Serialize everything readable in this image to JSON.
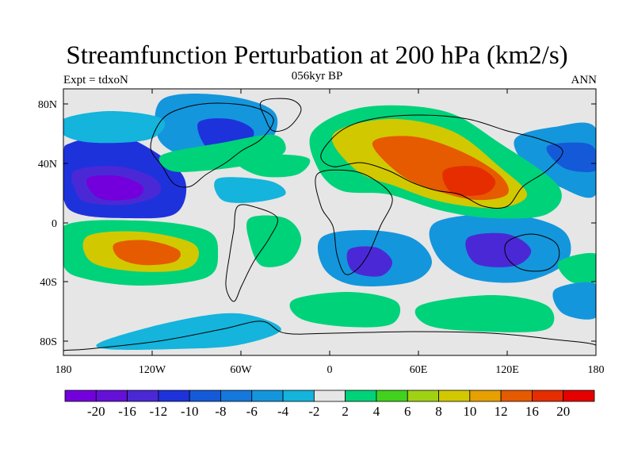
{
  "header": {
    "title": "Streamfunction Perturbation at 200 hPa (km2/s)",
    "left": "Expt = tdxoN",
    "center": "056kyr BP",
    "right": "ANN"
  },
  "map": {
    "lon_ticks": [
      "180",
      "120W",
      "60W",
      "0",
      "60E",
      "120E",
      "180"
    ],
    "lat_ticks": [
      "80N",
      "40N",
      "0",
      "40S",
      "80S"
    ],
    "background_color": "#e6e6e6",
    "coastline_color": "#000000"
  },
  "colorbar": {
    "labels": [
      "-20",
      "-16",
      "-12",
      "-10",
      "-8",
      "-6",
      "-4",
      "-2",
      "2",
      "4",
      "6",
      "8",
      "10",
      "12",
      "16",
      "20"
    ],
    "colors": [
      "#7300dc",
      "#6510d8",
      "#4b28d6",
      "#1e32dc",
      "#145ad8",
      "#1478dc",
      "#1496dc",
      "#14b4dc",
      "#e6e6e6",
      "#00d27a",
      "#41d21e",
      "#a0d214",
      "#d2c800",
      "#e6a000",
      "#e65a00",
      "#e62d00",
      "#e60000"
    ]
  },
  "contours": [
    {
      "name": "neg-pacific-ne",
      "color": "#1e32dc",
      "pts": [
        [
          90,
          180
        ],
        [
          150,
          170
        ],
        [
          215,
          205
        ],
        [
          235,
          235
        ],
        [
          220,
          270
        ],
        [
          160,
          275
        ],
        [
          100,
          270
        ],
        [
          80,
          250
        ],
        [
          80,
          195
        ]
      ]
    },
    {
      "name": "neg-pacific-ne-core",
      "color": "#4b28d6",
      "pts": [
        [
          95,
          215
        ],
        [
          150,
          210
        ],
        [
          195,
          225
        ],
        [
          200,
          245
        ],
        [
          160,
          258
        ],
        [
          110,
          255
        ],
        [
          95,
          240
        ]
      ]
    },
    {
      "name": "neg-pacific-ne-inner",
      "color": "#7300dc",
      "pts": [
        [
          110,
          225
        ],
        [
          150,
          222
        ],
        [
          180,
          235
        ],
        [
          170,
          250
        ],
        [
          125,
          250
        ]
      ]
    },
    {
      "name": "neg-canada",
      "color": "#1496dc",
      "pts": [
        [
          205,
          125
        ],
        [
          280,
          120
        ],
        [
          345,
          140
        ],
        [
          340,
          180
        ],
        [
          290,
          205
        ],
        [
          240,
          200
        ],
        [
          200,
          175
        ]
      ]
    },
    {
      "name": "neg-canada-core",
      "color": "#1e32dc",
      "pts": [
        [
          250,
          155
        ],
        [
          290,
          150
        ],
        [
          320,
          165
        ],
        [
          305,
          190
        ],
        [
          265,
          190
        ]
      ]
    },
    {
      "name": "neg-atlantic-band",
      "color": "#14b4dc",
      "pts": [
        [
          275,
          225
        ],
        [
          340,
          228
        ],
        [
          360,
          245
        ],
        [
          320,
          255
        ],
        [
          280,
          252
        ]
      ]
    },
    {
      "name": "neg-s-atlantic-africa",
      "color": "#1496dc",
      "pts": [
        [
          405,
          300
        ],
        [
          460,
          290
        ],
        [
          520,
          300
        ],
        [
          545,
          330
        ],
        [
          520,
          355
        ],
        [
          450,
          360
        ],
        [
          410,
          340
        ]
      ]
    },
    {
      "name": "neg-s-africa-core",
      "color": "#4b28d6",
      "pts": [
        [
          440,
          315
        ],
        [
          475,
          312
        ],
        [
          495,
          330
        ],
        [
          480,
          348
        ],
        [
          445,
          342
        ]
      ]
    },
    {
      "name": "neg-indian-aus",
      "color": "#1496dc",
      "pts": [
        [
          550,
          280
        ],
        [
          640,
          270
        ],
        [
          710,
          290
        ],
        [
          715,
          330
        ],
        [
          660,
          355
        ],
        [
          590,
          350
        ],
        [
          550,
          320
        ]
      ]
    },
    {
      "name": "neg-indian-aus-core",
      "color": "#4b28d6",
      "pts": [
        [
          590,
          300
        ],
        [
          640,
          295
        ],
        [
          670,
          315
        ],
        [
          650,
          335
        ],
        [
          600,
          332
        ]
      ]
    },
    {
      "name": "neg-ne-asia-pacific",
      "color": "#1496dc",
      "pts": [
        [
          650,
          175
        ],
        [
          700,
          160
        ],
        [
          752,
          162
        ],
        [
          752,
          245
        ],
        [
          705,
          235
        ],
        [
          665,
          210
        ]
      ]
    },
    {
      "name": "neg-west-pacific-core",
      "color": "#145ad8",
      "pts": [
        [
          690,
          185
        ],
        [
          735,
          180
        ],
        [
          752,
          190
        ],
        [
          752,
          215
        ],
        [
          712,
          212
        ]
      ]
    },
    {
      "name": "neg-southern-ocean",
      "color": "#14b4dc",
      "pts": [
        [
          130,
          430
        ],
        [
          220,
          405
        ],
        [
          300,
          395
        ],
        [
          355,
          415
        ],
        [
          300,
          435
        ],
        [
          220,
          440
        ],
        [
          135,
          440
        ]
      ]
    },
    {
      "name": "neg-far-west-band",
      "color": "#14b4dc",
      "pts": [
        [
          80,
          150
        ],
        [
          140,
          140
        ],
        [
          205,
          150
        ],
        [
          190,
          175
        ],
        [
          120,
          180
        ],
        [
          80,
          170
        ]
      ]
    },
    {
      "name": "pos-eurasia",
      "color": "#00d27a",
      "pts": [
        [
          395,
          165
        ],
        [
          460,
          135
        ],
        [
          560,
          140
        ],
        [
          630,
          180
        ],
        [
          705,
          235
        ],
        [
          690,
          270
        ],
        [
          620,
          275
        ],
        [
          555,
          265
        ],
        [
          490,
          245
        ],
        [
          430,
          240
        ],
        [
          400,
          210
        ]
      ]
    },
    {
      "name": "pos-eurasia-mid",
      "color": "#d2c800",
      "pts": [
        [
          420,
          170
        ],
        [
          490,
          150
        ],
        [
          570,
          165
        ],
        [
          630,
          210
        ],
        [
          665,
          245
        ],
        [
          630,
          262
        ],
        [
          560,
          255
        ],
        [
          500,
          235
        ],
        [
          450,
          215
        ]
      ]
    },
    {
      "name": "pos-eurasia-hi",
      "color": "#e65a00",
      "pts": [
        [
          470,
          180
        ],
        [
          520,
          172
        ],
        [
          580,
          190
        ],
        [
          630,
          220
        ],
        [
          640,
          245
        ],
        [
          600,
          252
        ],
        [
          550,
          240
        ],
        [
          505,
          220
        ]
      ]
    },
    {
      "name": "pos-eurasia-core",
      "color": "#e62d00",
      "pts": [
        [
          560,
          215
        ],
        [
          600,
          210
        ],
        [
          625,
          228
        ],
        [
          610,
          245
        ],
        [
          570,
          243
        ]
      ]
    },
    {
      "name": "pos-s-pacific",
      "color": "#00d27a",
      "pts": [
        [
          80,
          285
        ],
        [
          175,
          278
        ],
        [
          260,
          290
        ],
        [
          275,
          320
        ],
        [
          260,
          350
        ],
        [
          180,
          360
        ],
        [
          110,
          352
        ],
        [
          80,
          335
        ]
      ]
    },
    {
      "name": "pos-s-pacific-mid",
      "color": "#d2c800",
      "pts": [
        [
          110,
          298
        ],
        [
          175,
          292
        ],
        [
          240,
          305
        ],
        [
          250,
          325
        ],
        [
          230,
          340
        ],
        [
          170,
          342
        ],
        [
          115,
          330
        ]
      ]
    },
    {
      "name": "pos-s-pacific-core",
      "color": "#e65a00",
      "pts": [
        [
          145,
          307
        ],
        [
          185,
          303
        ],
        [
          225,
          315
        ],
        [
          220,
          330
        ],
        [
          180,
          334
        ],
        [
          150,
          325
        ]
      ]
    },
    {
      "name": "pos-s-atlantic",
      "color": "#00d27a",
      "pts": [
        [
          315,
          275
        ],
        [
          360,
          275
        ],
        [
          380,
          300
        ],
        [
          365,
          330
        ],
        [
          330,
          335
        ],
        [
          315,
          305
        ]
      ]
    },
    {
      "name": "pos-southern-ocean",
      "color": "#00d27a",
      "pts": [
        [
          370,
          378
        ],
        [
          440,
          368
        ],
        [
          500,
          380
        ],
        [
          495,
          408
        ],
        [
          440,
          412
        ],
        [
          380,
          402
        ]
      ]
    },
    {
      "name": "pos-southern-indian",
      "color": "#00d27a",
      "pts": [
        [
          530,
          385
        ],
        [
          620,
          372
        ],
        [
          690,
          385
        ],
        [
          690,
          415
        ],
        [
          610,
          418
        ],
        [
          540,
          410
        ]
      ]
    },
    {
      "name": "pos-pacific-midlat-band",
      "color": "#00d27a",
      "pts": [
        [
          205,
          195
        ],
        [
          280,
          180
        ],
        [
          345,
          170
        ],
        [
          360,
          190
        ],
        [
          330,
          205
        ],
        [
          260,
          215
        ],
        [
          215,
          215
        ]
      ]
    },
    {
      "name": "pos-north-atlantic-band",
      "color": "#00d27a",
      "pts": [
        [
          300,
          205
        ],
        [
          345,
          195
        ],
        [
          390,
          200
        ],
        [
          375,
          220
        ],
        [
          330,
          222
        ]
      ]
    },
    {
      "name": "pos-e-pacific-sh",
      "color": "#00d27a",
      "pts": [
        [
          705,
          330
        ],
        [
          752,
          320
        ],
        [
          752,
          355
        ],
        [
          720,
          355
        ]
      ]
    },
    {
      "name": "neg-se-pacific",
      "color": "#1496dc",
      "pts": [
        [
          700,
          365
        ],
        [
          752,
          358
        ],
        [
          752,
          400
        ],
        [
          710,
          395
        ]
      ]
    }
  ],
  "land": [
    {
      "name": "north-america",
      "pts": [
        [
          205,
          150
        ],
        [
          235,
          135
        ],
        [
          275,
          130
        ],
        [
          320,
          135
        ],
        [
          345,
          150
        ],
        [
          330,
          175
        ],
        [
          305,
          190
        ],
        [
          285,
          205
        ],
        [
          260,
          220
        ],
        [
          240,
          235
        ],
        [
          220,
          232
        ],
        [
          205,
          210
        ],
        [
          190,
          185
        ]
      ]
    },
    {
      "name": "greenland",
      "pts": [
        [
          330,
          128
        ],
        [
          365,
          125
        ],
        [
          380,
          138
        ],
        [
          365,
          160
        ],
        [
          345,
          165
        ],
        [
          335,
          150
        ]
      ]
    },
    {
      "name": "south-america",
      "pts": [
        [
          300,
          260
        ],
        [
          325,
          262
        ],
        [
          350,
          275
        ],
        [
          340,
          300
        ],
        [
          320,
          330
        ],
        [
          305,
          360
        ],
        [
          295,
          380
        ],
        [
          285,
          360
        ],
        [
          290,
          320
        ],
        [
          295,
          290
        ]
      ]
    },
    {
      "name": "africa",
      "pts": [
        [
          400,
          220
        ],
        [
          440,
          215
        ],
        [
          470,
          225
        ],
        [
          495,
          250
        ],
        [
          480,
          285
        ],
        [
          465,
          320
        ],
        [
          450,
          340
        ],
        [
          435,
          345
        ],
        [
          425,
          320
        ],
        [
          420,
          285
        ],
        [
          405,
          260
        ]
      ]
    },
    {
      "name": "eurasia",
      "pts": [
        [
          405,
          195
        ],
        [
          430,
          165
        ],
        [
          470,
          150
        ],
        [
          530,
          145
        ],
        [
          590,
          150
        ],
        [
          640,
          165
        ],
        [
          680,
          175
        ],
        [
          710,
          190
        ],
        [
          690,
          215
        ],
        [
          660,
          235
        ],
        [
          640,
          260
        ],
        [
          610,
          260
        ],
        [
          580,
          245
        ],
        [
          550,
          240
        ],
        [
          520,
          230
        ],
        [
          490,
          215
        ],
        [
          455,
          205
        ],
        [
          420,
          210
        ]
      ]
    },
    {
      "name": "australia",
      "pts": [
        [
          640,
          305
        ],
        [
          670,
          295
        ],
        [
          700,
          305
        ],
        [
          705,
          325
        ],
        [
          690,
          340
        ],
        [
          660,
          340
        ],
        [
          640,
          325
        ]
      ]
    },
    {
      "name": "antarctica",
      "pts": [
        [
          110,
          440
        ],
        [
          200,
          430
        ],
        [
          280,
          415
        ],
        [
          330,
          405
        ],
        [
          360,
          420
        ],
        [
          420,
          420
        ],
        [
          520,
          418
        ],
        [
          620,
          420
        ],
        [
          700,
          428
        ],
        [
          752,
          435
        ],
        [
          752,
          448
        ],
        [
          80,
          448
        ],
        [
          80,
          442
        ]
      ]
    }
  ]
}
